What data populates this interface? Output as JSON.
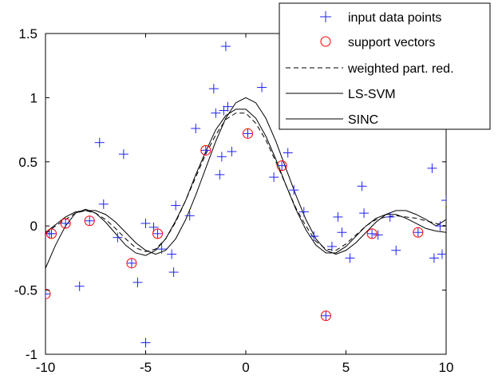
{
  "chart_data": {
    "type": "scatter",
    "xlim": [
      -10,
      10
    ],
    "ylim": [
      -1,
      1.5
    ],
    "xticks": [
      -10,
      -5,
      0,
      5,
      10
    ],
    "yticks": [
      -1,
      -0.5,
      0,
      0.5,
      1,
      1.5
    ],
    "xtick_labels": [
      "-10",
      "-5",
      "0",
      "5",
      "10"
    ],
    "ytick_labels": [
      "-1",
      "-0.5",
      "0",
      "0.5",
      "1",
      "1.5"
    ],
    "grid": false,
    "legend_position": "top-right",
    "colors": {
      "input": "#2020ff",
      "support": "#ff0000",
      "line": "#000000"
    },
    "series": [
      {
        "name": "input data points",
        "kind": "marker-plus",
        "points": [
          [
            -10.0,
            -0.53
          ],
          [
            -9.8,
            -0.06
          ],
          [
            -9.7,
            -0.06
          ],
          [
            -9.0,
            0.02
          ],
          [
            -8.3,
            -0.47
          ],
          [
            -7.8,
            0.04
          ],
          [
            -7.3,
            0.65
          ],
          [
            -7.1,
            0.17
          ],
          [
            -6.4,
            -0.09
          ],
          [
            -6.1,
            0.56
          ],
          [
            -5.7,
            -0.29
          ],
          [
            -5.4,
            -0.44
          ],
          [
            -5.0,
            -0.91
          ],
          [
            -5.0,
            0.02
          ],
          [
            -4.6,
            -0.01
          ],
          [
            -4.4,
            -0.06
          ],
          [
            -4.2,
            -0.18
          ],
          [
            -3.7,
            -0.22
          ],
          [
            -3.6,
            -0.36
          ],
          [
            -3.5,
            0.16
          ],
          [
            -2.8,
            0.08
          ],
          [
            -2.5,
            0.76
          ],
          [
            -2.0,
            0.59
          ],
          [
            -1.6,
            1.07
          ],
          [
            -1.5,
            0.88
          ],
          [
            -1.3,
            0.4
          ],
          [
            -1.2,
            0.54
          ],
          [
            -1.1,
            0.9
          ],
          [
            -1.0,
            1.4
          ],
          [
            -0.9,
            0.93
          ],
          [
            -0.7,
            0.58
          ],
          [
            0.1,
            0.72
          ],
          [
            0.8,
            1.08
          ],
          [
            1.4,
            0.38
          ],
          [
            1.8,
            0.47
          ],
          [
            2.1,
            0.57
          ],
          [
            2.4,
            0.28
          ],
          [
            2.9,
            0.11
          ],
          [
            3.4,
            -0.08
          ],
          [
            4.0,
            -0.7
          ],
          [
            4.3,
            -0.16
          ],
          [
            4.6,
            0.07
          ],
          [
            4.8,
            -0.05
          ],
          [
            5.2,
            -0.25
          ],
          [
            5.9,
            0.1
          ],
          [
            5.8,
            0.31
          ],
          [
            6.3,
            -0.06
          ],
          [
            6.6,
            -0.07
          ],
          [
            7.2,
            0.07
          ],
          [
            7.5,
            -0.19
          ],
          [
            8.6,
            -0.05
          ],
          [
            9.3,
            0.45
          ],
          [
            9.4,
            -0.25
          ],
          [
            9.8,
            -0.22
          ],
          [
            10.0,
            0.2
          ],
          [
            9.7,
            0.0
          ]
        ]
      },
      {
        "name": "support vectors",
        "kind": "marker-circle",
        "points": [
          [
            -10.0,
            -0.53
          ],
          [
            -9.7,
            -0.06
          ],
          [
            -9.0,
            0.02
          ],
          [
            -7.8,
            0.04
          ],
          [
            -5.7,
            -0.29
          ],
          [
            -4.4,
            -0.06
          ],
          [
            -2.0,
            0.59
          ],
          [
            0.1,
            0.72
          ],
          [
            1.8,
            0.47
          ],
          [
            4.0,
            -0.7
          ],
          [
            6.3,
            -0.06
          ],
          [
            8.6,
            -0.05
          ]
        ]
      },
      {
        "name": "weighted part. red.",
        "kind": "line-dashed",
        "points": [
          [
            -10.0,
            -0.06
          ],
          [
            -9.5,
            0.0
          ],
          [
            -9.0,
            0.05
          ],
          [
            -8.5,
            0.1
          ],
          [
            -8.0,
            0.12
          ],
          [
            -7.5,
            0.1
          ],
          [
            -7.0,
            0.05
          ],
          [
            -6.5,
            -0.02
          ],
          [
            -6.0,
            -0.1
          ],
          [
            -5.5,
            -0.17
          ],
          [
            -5.0,
            -0.2
          ],
          [
            -4.5,
            -0.18
          ],
          [
            -4.0,
            -0.1
          ],
          [
            -3.5,
            0.03
          ],
          [
            -3.0,
            0.2
          ],
          [
            -2.5,
            0.38
          ],
          [
            -2.0,
            0.56
          ],
          [
            -1.5,
            0.71
          ],
          [
            -1.0,
            0.83
          ],
          [
            -0.5,
            0.88
          ],
          [
            0.0,
            0.88
          ],
          [
            0.5,
            0.8
          ],
          [
            1.0,
            0.67
          ],
          [
            1.5,
            0.5
          ],
          [
            2.0,
            0.32
          ],
          [
            2.5,
            0.14
          ],
          [
            3.0,
            0.0
          ],
          [
            3.5,
            -0.12
          ],
          [
            4.0,
            -0.18
          ],
          [
            4.5,
            -0.19
          ],
          [
            5.0,
            -0.14
          ],
          [
            5.5,
            -0.07
          ],
          [
            6.0,
            0.0
          ],
          [
            6.5,
            0.05
          ],
          [
            7.0,
            0.07
          ],
          [
            7.5,
            0.08
          ],
          [
            8.0,
            0.07
          ],
          [
            8.5,
            0.06
          ],
          [
            9.0,
            0.04
          ],
          [
            9.5,
            0.02
          ],
          [
            10.0,
            0.0
          ]
        ]
      },
      {
        "name": "LS-SVM",
        "kind": "line-solid",
        "points": [
          [
            -10.0,
            -0.33
          ],
          [
            -9.5,
            -0.15
          ],
          [
            -9.0,
            0.0
          ],
          [
            -8.5,
            0.1
          ],
          [
            -8.0,
            0.13
          ],
          [
            -7.5,
            0.1
          ],
          [
            -7.0,
            0.03
          ],
          [
            -6.5,
            -0.06
          ],
          [
            -6.0,
            -0.15
          ],
          [
            -5.5,
            -0.21
          ],
          [
            -5.0,
            -0.23
          ],
          [
            -4.5,
            -0.19
          ],
          [
            -4.0,
            -0.1
          ],
          [
            -3.5,
            0.04
          ],
          [
            -3.0,
            0.2
          ],
          [
            -2.5,
            0.4
          ],
          [
            -2.0,
            0.58
          ],
          [
            -1.5,
            0.75
          ],
          [
            -1.0,
            0.86
          ],
          [
            -0.5,
            0.91
          ],
          [
            0.0,
            0.91
          ],
          [
            0.5,
            0.84
          ],
          [
            1.0,
            0.7
          ],
          [
            1.5,
            0.52
          ],
          [
            2.0,
            0.32
          ],
          [
            2.5,
            0.13
          ],
          [
            3.0,
            -0.03
          ],
          [
            3.5,
            -0.15
          ],
          [
            4.0,
            -0.21
          ],
          [
            4.5,
            -0.21
          ],
          [
            5.0,
            -0.16
          ],
          [
            5.5,
            -0.08
          ],
          [
            6.0,
            0.0
          ],
          [
            6.5,
            0.06
          ],
          [
            7.0,
            0.09
          ],
          [
            7.5,
            0.09
          ],
          [
            8.0,
            0.06
          ],
          [
            8.5,
            0.02
          ],
          [
            9.0,
            -0.02
          ],
          [
            9.5,
            -0.04
          ],
          [
            10.0,
            -0.05
          ]
        ]
      },
      {
        "name": "SINC",
        "kind": "line-solid",
        "points": [
          [
            -10.0,
            -0.05
          ],
          [
            -9.5,
            0.01
          ],
          [
            -9.0,
            0.07
          ],
          [
            -8.5,
            0.11
          ],
          [
            -8.0,
            0.12
          ],
          [
            -7.5,
            0.12
          ],
          [
            -7.0,
            0.09
          ],
          [
            -6.5,
            0.03
          ],
          [
            -6.0,
            -0.05
          ],
          [
            -5.5,
            -0.13
          ],
          [
            -5.0,
            -0.19
          ],
          [
            -4.5,
            -0.22
          ],
          [
            -4.0,
            -0.19
          ],
          [
            -3.5,
            -0.1
          ],
          [
            -3.0,
            0.05
          ],
          [
            -2.5,
            0.24
          ],
          [
            -2.0,
            0.45
          ],
          [
            -1.5,
            0.66
          ],
          [
            -1.0,
            0.84
          ],
          [
            -0.5,
            0.96
          ],
          [
            0.0,
            1.0
          ],
          [
            0.5,
            0.96
          ],
          [
            1.0,
            0.84
          ],
          [
            1.5,
            0.66
          ],
          [
            2.0,
            0.45
          ],
          [
            2.5,
            0.24
          ],
          [
            3.0,
            0.05
          ],
          [
            3.5,
            -0.1
          ],
          [
            4.0,
            -0.19
          ],
          [
            4.5,
            -0.22
          ],
          [
            5.0,
            -0.19
          ],
          [
            5.5,
            -0.13
          ],
          [
            6.0,
            -0.05
          ],
          [
            6.5,
            0.03
          ],
          [
            7.0,
            0.09
          ],
          [
            7.5,
            0.12
          ],
          [
            8.0,
            0.12
          ],
          [
            8.5,
            0.09
          ],
          [
            9.0,
            0.05
          ],
          [
            9.5,
            0.0
          ],
          [
            10.0,
            0.05
          ]
        ]
      }
    ]
  }
}
